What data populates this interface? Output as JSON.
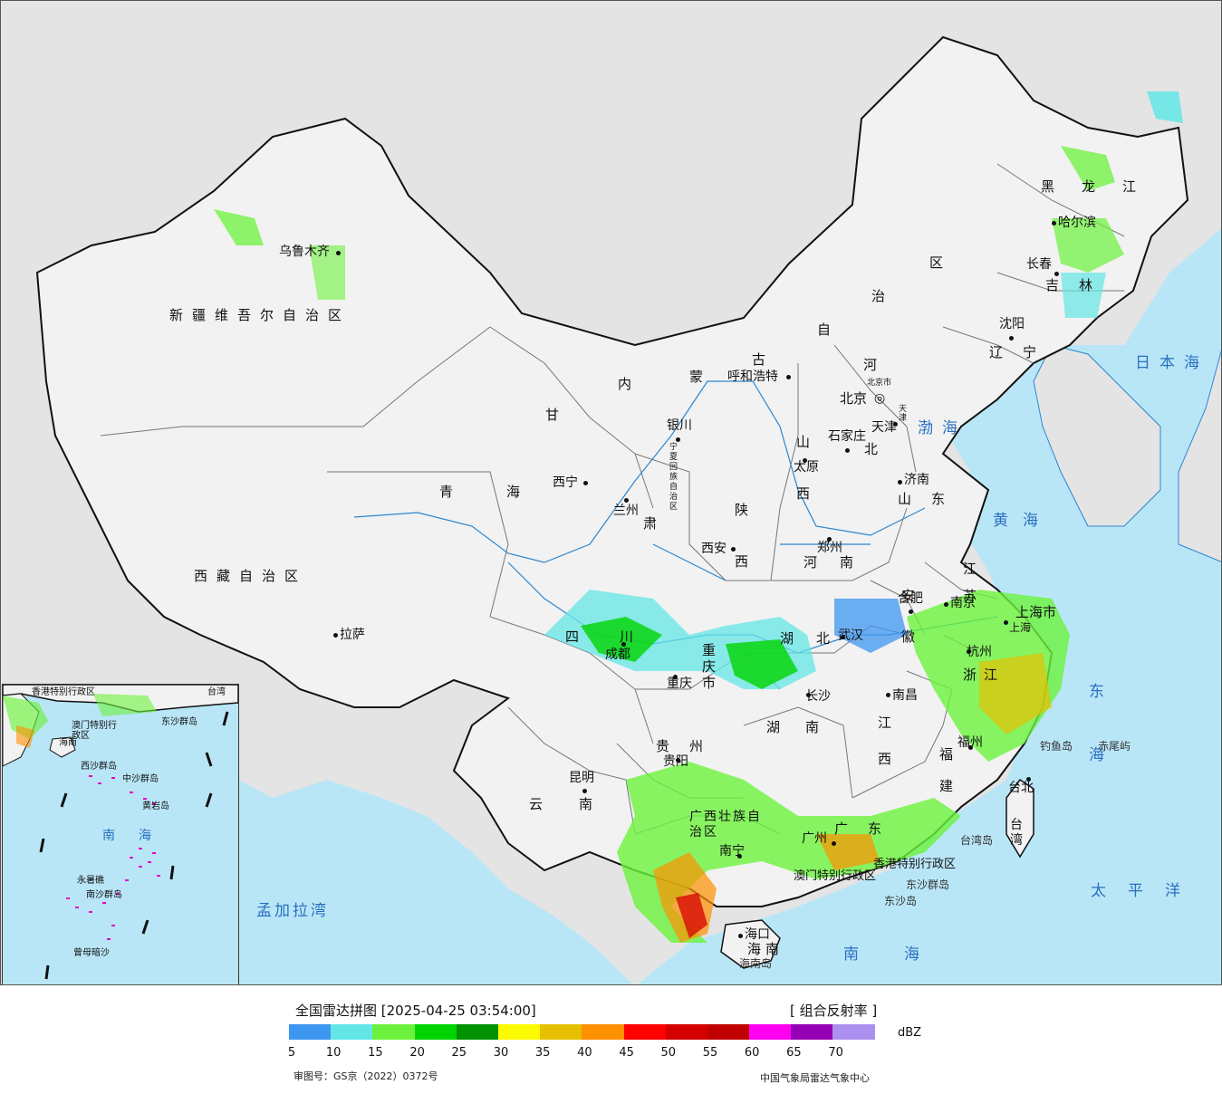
{
  "map": {
    "provinces": [
      {
        "key": "xinjiang",
        "text": "新疆维吾尔自治区"
      },
      {
        "key": "xizang",
        "text": "西藏自治区"
      },
      {
        "key": "qinghai_a",
        "text": "青"
      },
      {
        "key": "qinghai_b",
        "text": "海"
      },
      {
        "key": "gansu_a",
        "text": "甘"
      },
      {
        "key": "gansu_b",
        "text": "肃"
      },
      {
        "key": "neimeng_a",
        "text": "内"
      },
      {
        "key": "neimeng_b",
        "text": "蒙"
      },
      {
        "key": "neimeng_c",
        "text": "古"
      },
      {
        "key": "neimeng_d",
        "text": "自"
      },
      {
        "key": "neimeng_e",
        "text": "治"
      },
      {
        "key": "neimeng_f",
        "text": "区"
      },
      {
        "key": "heilongjiang",
        "text": "黑龙江"
      },
      {
        "key": "jilin",
        "text": "吉林"
      },
      {
        "key": "liaoning",
        "text": "辽宁"
      },
      {
        "key": "hebei_a",
        "text": "河"
      },
      {
        "key": "hebei_b",
        "text": "北"
      },
      {
        "key": "shanxi_a",
        "text": "山"
      },
      {
        "key": "shanxi_b",
        "text": "西"
      },
      {
        "key": "shandong",
        "text": "山东"
      },
      {
        "key": "shaanxi_a",
        "text": "陕"
      },
      {
        "key": "shaanxi_b",
        "text": "西"
      },
      {
        "key": "ningxia",
        "text": "宁夏回族自治区"
      },
      {
        "key": "henan",
        "text": "河南"
      },
      {
        "key": "sichuan",
        "text": "四川"
      },
      {
        "key": "chongqing",
        "text": "重庆市"
      },
      {
        "key": "hubei",
        "text": "湖北"
      },
      {
        "key": "anhui",
        "text": "安徽"
      },
      {
        "key": "jiangsu",
        "text": "江苏"
      },
      {
        "key": "shanghai",
        "text": "上海市"
      },
      {
        "key": "zhejiang",
        "text": "浙江"
      },
      {
        "key": "jiangxi",
        "text": "江西"
      },
      {
        "key": "hunan",
        "text": "湖南"
      },
      {
        "key": "guizhou",
        "text": "贵州"
      },
      {
        "key": "yunnan",
        "text": "云南"
      },
      {
        "key": "fujian",
        "text": "福建"
      },
      {
        "key": "guangxi",
        "text": "广西壮族自治区"
      },
      {
        "key": "guangdong",
        "text": "广东"
      },
      {
        "key": "hainan",
        "text": "海南"
      },
      {
        "key": "taiwan",
        "text": "台湾"
      },
      {
        "key": "hongkong",
        "text": "香港特别行政区"
      },
      {
        "key": "macao",
        "text": "澳门特别行政区"
      }
    ],
    "cities": [
      {
        "key": "wulumuqi",
        "text": "乌鲁木齐"
      },
      {
        "key": "lasa",
        "text": "拉萨"
      },
      {
        "key": "xining",
        "text": "西宁"
      },
      {
        "key": "lanzhou",
        "text": "兰州"
      },
      {
        "key": "yinchuan",
        "text": "银川"
      },
      {
        "key": "huhehaote",
        "text": "呼和浩特"
      },
      {
        "key": "haerbin",
        "text": "哈尔滨"
      },
      {
        "key": "changchun",
        "text": "长春"
      },
      {
        "key": "shenyang",
        "text": "沈阳"
      },
      {
        "key": "beijing",
        "text": "北京"
      },
      {
        "key": "beijingshi",
        "text": "北京市"
      },
      {
        "key": "tianjin",
        "text": "天津"
      },
      {
        "key": "tianjinshi",
        "text": "天津"
      },
      {
        "key": "shijiazhuang",
        "text": "石家庄"
      },
      {
        "key": "taiyuan",
        "text": "太原"
      },
      {
        "key": "jinan",
        "text": "济南"
      },
      {
        "key": "zhengzhou",
        "text": "郑州"
      },
      {
        "key": "xian",
        "text": "西安"
      },
      {
        "key": "hefei",
        "text": "合肥"
      },
      {
        "key": "nanjing",
        "text": "南京"
      },
      {
        "key": "wuhan",
        "text": "武汉"
      },
      {
        "key": "chengdu",
        "text": "成都"
      },
      {
        "key": "chongqing",
        "text": "重庆"
      },
      {
        "key": "changsha",
        "text": "长沙"
      },
      {
        "key": "nanchang",
        "text": "南昌"
      },
      {
        "key": "hangzhou",
        "text": "杭州"
      },
      {
        "key": "fuzhou",
        "text": "福州"
      },
      {
        "key": "guiyang",
        "text": "贵阳"
      },
      {
        "key": "kunming",
        "text": "昆明"
      },
      {
        "key": "nanning",
        "text": "南宁"
      },
      {
        "key": "guangzhou",
        "text": "广州"
      },
      {
        "key": "haikou",
        "text": "海口"
      },
      {
        "key": "taibei",
        "text": "台北"
      },
      {
        "key": "shanghai_c",
        "text": "上海"
      }
    ],
    "seas": {
      "riben": "日本海",
      "bohai": "渤海",
      "huanghai": "黄海",
      "donghai": "东海",
      "taipingyang": "太平洋",
      "nanhai": "南海",
      "mengjiala": "孟加拉湾"
    },
    "islands": {
      "diaoyu": "钓鱼岛",
      "chiwei": "赤尾屿",
      "taiwandao": "台湾岛",
      "dongsha_qundao": "东沙群岛",
      "dongsha_dao": "东沙岛",
      "hainandao": "海南岛"
    },
    "inset": {
      "labels": {
        "hk": "香港特别行政区",
        "mo": "澳门特别行政区",
        "tw": "台湾",
        "dongsha": "东沙群岛",
        "xisha": "西沙群岛",
        "zhongsha": "中沙群岛",
        "huangyan": "黄岩岛",
        "nanhai_a": "南",
        "nanhai_b": "海",
        "yongshu": "永暑礁",
        "nansha": "南沙群岛",
        "zengmu": "曾母暗沙",
        "hainan": "海南"
      }
    }
  },
  "legend": {
    "title": "全国雷达拼图 [2025-04-25 03:54:00]",
    "product": "[ 组合反射率 ]",
    "unit": "dBZ",
    "colors": [
      "#3d96f0",
      "#64e6e6",
      "#6cf23c",
      "#00d400",
      "#009200",
      "#fafa00",
      "#e6c000",
      "#ff9000",
      "#ff0000",
      "#d40000",
      "#c00000",
      "#ff00f0",
      "#9600b4",
      "#ac90f0"
    ],
    "ticks": [
      "5",
      "10",
      "15",
      "20",
      "25",
      "30",
      "35",
      "40",
      "45",
      "50",
      "55",
      "60",
      "65",
      "70"
    ],
    "approval": "审图号：GS京（2022）0372号",
    "agency": "中国气象局雷达气象中心"
  }
}
